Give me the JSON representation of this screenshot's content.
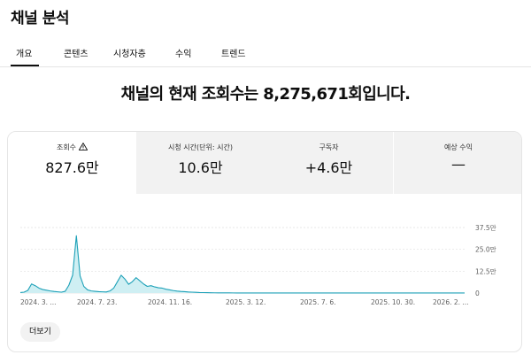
{
  "header": {
    "title": "채널 분석"
  },
  "tabs": [
    {
      "label": "개요"
    },
    {
      "label": "콘텐츠"
    },
    {
      "label": "시청자층"
    },
    {
      "label": "수익"
    },
    {
      "label": "트렌드"
    }
  ],
  "headline": "채널의 현재 조회수는 8,275,671회입니다.",
  "metrics": [
    {
      "label": "조회수",
      "value": "827.6만",
      "icon": "warning-icon"
    },
    {
      "label": "시청 시간(단위: 시간)",
      "value": "10.6만"
    },
    {
      "label": "구독자",
      "value": "+4.6만"
    },
    {
      "label": "예상 수익",
      "value": "—"
    }
  ],
  "more_button": "더보기",
  "colors": {
    "accent": "#1ea1b8",
    "fill": "#cfeff3",
    "grid": "#e0e0e0"
  },
  "chart_data": {
    "type": "area",
    "x_tick_labels": [
      "2024. 3. ...",
      "2024. 7. 23.",
      "2024. 11. 16.",
      "2025. 3. 12.",
      "2025. 7. 6.",
      "2025. 10. 30.",
      "2026. 2. ..."
    ],
    "y_tick_labels": [
      "37.5만",
      "25.0만",
      "12.5만",
      "0"
    ],
    "ylim": [
      0,
      375000
    ],
    "grid": true,
    "values": [
      3000,
      5000,
      15000,
      52000,
      42000,
      28000,
      20000,
      16000,
      12000,
      9000,
      7000,
      5000,
      10000,
      45000,
      102000,
      328000,
      98000,
      38000,
      18000,
      12000,
      10000,
      8000,
      7000,
      6000,
      12000,
      28000,
      65000,
      102000,
      80000,
      50000,
      65000,
      88000,
      70000,
      52000,
      38000,
      42000,
      35000,
      30000,
      28000,
      22000,
      18000,
      14000,
      11000,
      9000,
      8000,
      6000,
      5000,
      4000,
      3000,
      2500,
      2000,
      1500,
      1200,
      1000,
      900,
      800,
      700,
      600,
      500,
      500,
      500,
      400,
      400,
      400,
      300,
      300,
      300,
      300,
      300,
      300,
      300,
      300,
      300,
      300,
      300,
      300,
      300,
      300,
      300,
      300,
      300,
      300,
      300,
      300,
      300,
      300,
      300,
      300,
      300,
      300,
      300,
      300,
      300,
      300,
      300,
      300,
      300,
      300,
      300,
      300,
      300,
      300,
      300,
      300,
      300,
      300,
      300,
      300,
      300,
      300,
      300,
      300,
      300,
      300,
      300,
      300,
      300,
      300,
      300,
      300
    ]
  }
}
